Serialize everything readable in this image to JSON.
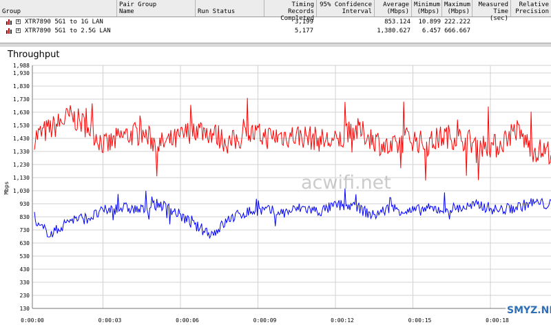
{
  "table": {
    "columns": [
      "Group",
      "Pair Group\nName",
      "Run Status",
      "Timing Records\nCompleted",
      "95% Confidence\nInterval",
      "Average\n(Mbps)",
      "Minimum\n(Mbps)",
      "Maximum\n(Mbps)",
      "Measured\nTime (sec)",
      "Relative\nPrecision"
    ],
    "rows": [
      {
        "group": "XTR7890 5G1 to 1G LAN",
        "records": "3,199",
        "average": "853.124",
        "minimum": "10.899",
        "maximum": "222.222"
      },
      {
        "group": "XTR7890 5G1 to 2.5G LAN",
        "records": "5,177",
        "average": "1,380.627",
        "minimum": "6.457",
        "maximum": "666.667"
      }
    ]
  },
  "chart": {
    "title": "Throughput",
    "watermark": "acwifi.net",
    "badge": "SMYZ.NET"
  },
  "chart_data": {
    "type": "line",
    "title": "Throughput",
    "xlabel": "",
    "ylabel": "Mbps",
    "ylim": [
      120,
      1988
    ],
    "yticks": [
      "1,988",
      "1,930",
      "1,830",
      "1,730",
      "1,630",
      "1,530",
      "1,430",
      "1,330",
      "1,230",
      "1,130",
      "1,030",
      "930",
      "830",
      "730",
      "630",
      "530",
      "430",
      "330",
      "230",
      "130"
    ],
    "xticks": [
      "0:00:00",
      "0:00:03",
      "0:00:06",
      "0:00:09",
      "0:00:12",
      "0:00:15",
      "0:00:18"
    ],
    "grid": true,
    "colors": {
      "series1": "#ff0000",
      "series2": "#0000ff"
    },
    "series": [
      {
        "name": "XTR7890 5G1 to 2.5G LAN",
        "approx_values": [
          1440,
          1510,
          1600,
          1520,
          1370,
          1450,
          1470,
          1380,
          1420,
          1510,
          1470,
          1390,
          1470,
          1440,
          1450,
          1450,
          1420,
          1400,
          1500,
          1430,
          1340,
          1440,
          1380,
          1450,
          1430,
          1380,
          1370,
          1500,
          1340,
          1330
        ]
      },
      {
        "name": "XTR7890 5G1 to 1G LAN",
        "approx_values": [
          770,
          700,
          810,
          820,
          880,
          900,
          880,
          930,
          860,
          760,
          700,
          820,
          870,
          880,
          860,
          900,
          870,
          920,
          910,
          840,
          900,
          870,
          890,
          890,
          900,
          920,
          880,
          900,
          940,
          920
        ]
      }
    ]
  }
}
